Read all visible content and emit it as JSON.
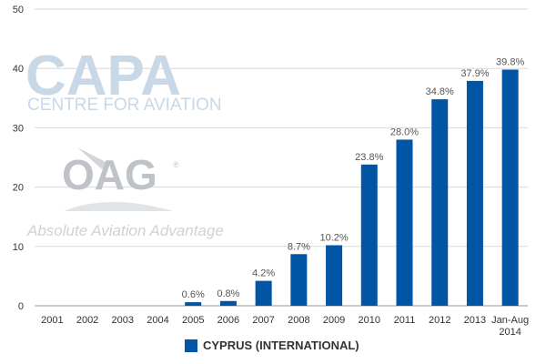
{
  "watermarks": {
    "capa_title": "CAPA",
    "capa_subtitle": "CENTRE FOR AVIATION",
    "oag_title": "OAG",
    "oag_registered": "®",
    "oag_subtitle": "Absolute Aviation Advantage"
  },
  "chart_data": {
    "type": "bar",
    "categories": [
      "2001",
      "2002",
      "2003",
      "2004",
      "2005",
      "2006",
      "2007",
      "2008",
      "2009",
      "2010",
      "2011",
      "2012",
      "2013",
      "Jan-Aug 2014"
    ],
    "series": [
      {
        "name": "CYPRUS (INTERNATIONAL)",
        "values": [
          0,
          0,
          0,
          0,
          0.6,
          0.8,
          4.2,
          8.7,
          10.2,
          23.8,
          28.0,
          34.8,
          37.9,
          39.8
        ],
        "labels": [
          "",
          "",
          "",
          "",
          "0.6%",
          "0.8%",
          "4.2%",
          "8.7%",
          "10.2%",
          "23.8%",
          "28.0%",
          "34.8%",
          "37.9%",
          "39.8%"
        ],
        "color": "#0055a4"
      }
    ],
    "ylim": [
      0,
      50
    ],
    "yticks": [
      "0",
      "10",
      "20",
      "30",
      "40",
      "50"
    ],
    "grid": true,
    "legend_position": "bottom"
  }
}
